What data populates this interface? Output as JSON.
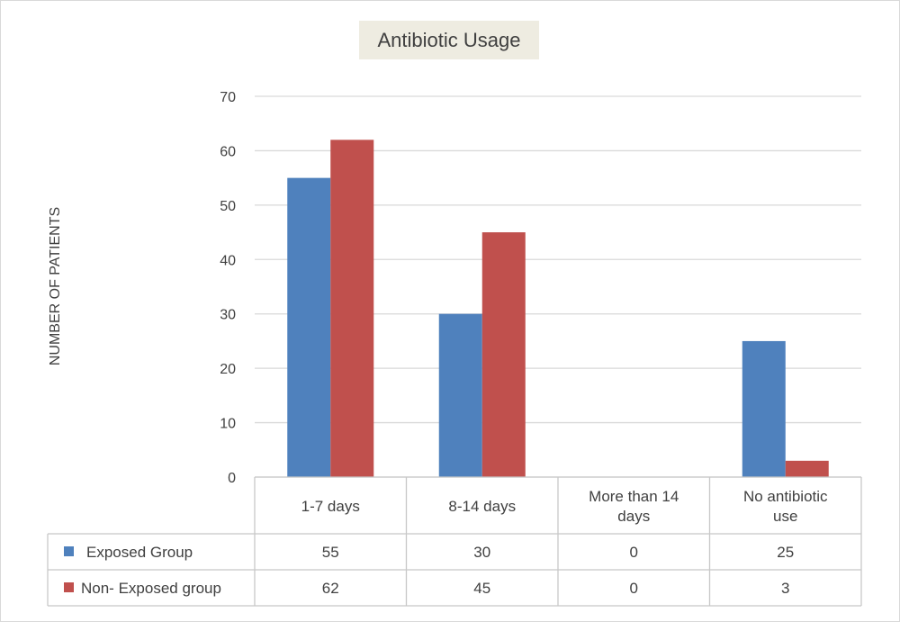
{
  "chart_data": {
    "type": "bar",
    "title": "Antibiotic Usage",
    "ylabel": "NUMBER OF PATIENTS",
    "xlabel": "",
    "ylim": [
      0,
      70
    ],
    "yticks": [
      0,
      10,
      20,
      30,
      40,
      50,
      60,
      70
    ],
    "grid": true,
    "legend": "data table (bottom-left)",
    "categories": [
      [
        "1-7 days"
      ],
      [
        "8-14 days"
      ],
      [
        "More than 14",
        "days"
      ],
      [
        "No antibiotic",
        "use"
      ]
    ],
    "series": [
      {
        "name": "Exposed Group",
        "color": "#4f81bd",
        "values": [
          55,
          30,
          0,
          25
        ]
      },
      {
        "name": "Non- Exposed group",
        "color": "#c0504d",
        "values": [
          62,
          45,
          0,
          3
        ]
      }
    ]
  }
}
